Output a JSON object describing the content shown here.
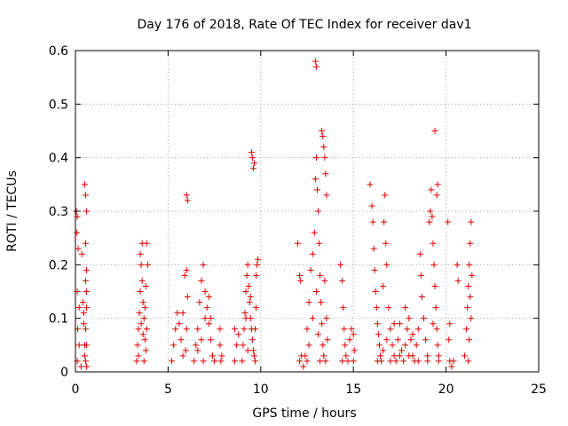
{
  "chart_data": {
    "type": "scatter",
    "title": "Day 176 of 2018, Rate Of TEC Index for receiver dav1",
    "xlabel": "GPS time / hours",
    "ylabel": "ROTI / TECUs",
    "xlim": [
      0,
      25
    ],
    "ylim": [
      0,
      0.6
    ],
    "xticks": [
      "0",
      "5",
      "10",
      "15",
      "20",
      "25"
    ],
    "yticks": [
      "0",
      "0.1",
      "0.2",
      "0.3",
      "0.4",
      "0.5",
      "0.6"
    ],
    "grid": true,
    "marker": "+",
    "color": "#e00000",
    "series": [
      {
        "name": "dav1",
        "points": [
          [
            0.05,
            0.3
          ],
          [
            0.1,
            0.29
          ],
          [
            0.08,
            0.26
          ],
          [
            0.15,
            0.23
          ],
          [
            0.1,
            0.15
          ],
          [
            0.2,
            0.12
          ],
          [
            0.12,
            0.08
          ],
          [
            0.2,
            0.05
          ],
          [
            0.1,
            0.02
          ],
          [
            0.3,
            0.01
          ],
          [
            0.35,
            0.22
          ],
          [
            0.4,
            0.13
          ],
          [
            0.45,
            0.09
          ],
          [
            0.5,
            0.05
          ],
          [
            0.5,
            0.03
          ],
          [
            0.45,
            0.11
          ],
          [
            0.5,
            0.35
          ],
          [
            0.55,
            0.33
          ],
          [
            0.6,
            0.3
          ],
          [
            0.55,
            0.24
          ],
          [
            0.6,
            0.19
          ],
          [
            0.55,
            0.17
          ],
          [
            0.6,
            0.15
          ],
          [
            0.6,
            0.12
          ],
          [
            0.55,
            0.08
          ],
          [
            0.6,
            0.05
          ],
          [
            0.55,
            0.02
          ],
          [
            0.6,
            0.01
          ],
          [
            3.3,
            0.02
          ],
          [
            3.35,
            0.05
          ],
          [
            3.4,
            0.08
          ],
          [
            3.45,
            0.11
          ],
          [
            3.5,
            0.15
          ],
          [
            3.55,
            0.2
          ],
          [
            3.6,
            0.24
          ],
          [
            3.5,
            0.22
          ],
          [
            3.6,
            0.17
          ],
          [
            3.65,
            0.13
          ],
          [
            3.7,
            0.1
          ],
          [
            3.75,
            0.06
          ],
          [
            3.8,
            0.04
          ],
          [
            3.7,
            0.02
          ],
          [
            3.9,
            0.2
          ],
          [
            3.85,
            0.24
          ],
          [
            3.8,
            0.16
          ],
          [
            3.75,
            0.12
          ],
          [
            3.4,
            0.03
          ],
          [
            3.55,
            0.09
          ],
          [
            3.65,
            0.07
          ],
          [
            3.85,
            0.08
          ],
          [
            5.2,
            0.02
          ],
          [
            5.3,
            0.05
          ],
          [
            5.4,
            0.08
          ],
          [
            5.5,
            0.11
          ],
          [
            5.6,
            0.09
          ],
          [
            5.7,
            0.06
          ],
          [
            5.8,
            0.03
          ],
          [
            5.9,
            0.18
          ],
          [
            6.0,
            0.19
          ],
          [
            6.05,
            0.14
          ],
          [
            6.0,
            0.08
          ],
          [
            5.95,
            0.04
          ],
          [
            5.8,
            0.11
          ],
          [
            6.0,
            0.33
          ],
          [
            6.05,
            0.32
          ],
          [
            6.4,
            0.02
          ],
          [
            6.5,
            0.05
          ],
          [
            6.6,
            0.08
          ],
          [
            6.7,
            0.13
          ],
          [
            6.8,
            0.17
          ],
          [
            6.9,
            0.2
          ],
          [
            7.0,
            0.15
          ],
          [
            7.1,
            0.12
          ],
          [
            7.2,
            0.09
          ],
          [
            7.3,
            0.06
          ],
          [
            7.4,
            0.03
          ],
          [
            7.5,
            0.02
          ],
          [
            7.0,
            0.1
          ],
          [
            6.8,
            0.06
          ],
          [
            7.2,
            0.14
          ],
          [
            7.3,
            0.1
          ],
          [
            6.6,
            0.04
          ],
          [
            6.9,
            0.02
          ],
          [
            7.8,
            0.08
          ],
          [
            7.9,
            0.03
          ],
          [
            7.85,
            0.02
          ],
          [
            7.8,
            0.05
          ],
          [
            8.6,
            0.02
          ],
          [
            8.7,
            0.05
          ],
          [
            8.8,
            0.07
          ],
          [
            8.6,
            0.08
          ],
          [
            9.0,
            0.02
          ],
          [
            9.05,
            0.05
          ],
          [
            9.1,
            0.08
          ],
          [
            9.15,
            0.11
          ],
          [
            9.2,
            0.15
          ],
          [
            9.25,
            0.18
          ],
          [
            9.3,
            0.2
          ],
          [
            9.35,
            0.16
          ],
          [
            9.4,
            0.13
          ],
          [
            9.45,
            0.1
          ],
          [
            9.5,
            0.08
          ],
          [
            9.55,
            0.06
          ],
          [
            9.6,
            0.04
          ],
          [
            9.65,
            0.03
          ],
          [
            9.7,
            0.02
          ],
          [
            9.75,
            0.18
          ],
          [
            9.8,
            0.2
          ],
          [
            9.85,
            0.21
          ],
          [
            9.75,
            0.12
          ],
          [
            9.7,
            0.08
          ],
          [
            9.2,
            0.1
          ],
          [
            9.3,
            0.04
          ],
          [
            9.45,
            0.14
          ],
          [
            9.5,
            0.41
          ],
          [
            9.55,
            0.4
          ],
          [
            9.6,
            0.38
          ],
          [
            9.65,
            0.39
          ],
          [
            12.0,
            0.24
          ],
          [
            12.1,
            0.18
          ],
          [
            12.15,
            0.17
          ],
          [
            12.2,
            0.03
          ],
          [
            12.3,
            0.01
          ],
          [
            12.1,
            0.02
          ],
          [
            12.4,
            0.03
          ],
          [
            12.5,
            0.08
          ],
          [
            12.6,
            0.13
          ],
          [
            12.7,
            0.19
          ],
          [
            12.8,
            0.22
          ],
          [
            12.9,
            0.26
          ],
          [
            12.95,
            0.36
          ],
          [
            13.0,
            0.4
          ],
          [
            13.05,
            0.34
          ],
          [
            13.1,
            0.3
          ],
          [
            13.15,
            0.24
          ],
          [
            13.2,
            0.18
          ],
          [
            13.25,
            0.13
          ],
          [
            13.3,
            0.09
          ],
          [
            13.35,
            0.05
          ],
          [
            13.4,
            0.03
          ],
          [
            13.5,
            0.02
          ],
          [
            13.6,
            0.06
          ],
          [
            13.55,
            0.1
          ],
          [
            13.45,
            0.17
          ],
          [
            12.6,
            0.05
          ],
          [
            12.8,
            0.1
          ],
          [
            13.0,
            0.15
          ],
          [
            13.1,
            0.07
          ],
          [
            13.2,
            0.02
          ],
          [
            12.5,
            0.02
          ],
          [
            12.95,
            0.58
          ],
          [
            13.0,
            0.57
          ],
          [
            13.3,
            0.45
          ],
          [
            13.35,
            0.44
          ],
          [
            13.4,
            0.42
          ],
          [
            13.45,
            0.4
          ],
          [
            13.5,
            0.37
          ],
          [
            13.55,
            0.33
          ],
          [
            14.3,
            0.2
          ],
          [
            14.4,
            0.17
          ],
          [
            14.45,
            0.12
          ],
          [
            14.5,
            0.08
          ],
          [
            14.55,
            0.05
          ],
          [
            14.6,
            0.03
          ],
          [
            14.7,
            0.02
          ],
          [
            14.8,
            0.06
          ],
          [
            14.9,
            0.08
          ],
          [
            15.0,
            0.07
          ],
          [
            15.05,
            0.04
          ],
          [
            15.0,
            0.02
          ],
          [
            14.4,
            0.02
          ],
          [
            15.9,
            0.35
          ],
          [
            16.0,
            0.31
          ],
          [
            16.05,
            0.28
          ],
          [
            16.1,
            0.23
          ],
          [
            16.15,
            0.19
          ],
          [
            16.2,
            0.15
          ],
          [
            16.25,
            0.12
          ],
          [
            16.3,
            0.09
          ],
          [
            16.35,
            0.07
          ],
          [
            16.4,
            0.05
          ],
          [
            16.45,
            0.03
          ],
          [
            16.5,
            0.02
          ],
          [
            16.6,
            0.16
          ],
          [
            16.65,
            0.28
          ],
          [
            16.7,
            0.33
          ],
          [
            16.75,
            0.24
          ],
          [
            16.8,
            0.2
          ],
          [
            16.9,
            0.12
          ],
          [
            17.0,
            0.08
          ],
          [
            17.1,
            0.05
          ],
          [
            17.2,
            0.03
          ],
          [
            17.3,
            0.02
          ],
          [
            17.4,
            0.06
          ],
          [
            17.5,
            0.09
          ],
          [
            17.6,
            0.04
          ],
          [
            17.7,
            0.02
          ],
          [
            17.8,
            0.05
          ],
          [
            17.9,
            0.08
          ],
          [
            18.0,
            0.1
          ],
          [
            18.1,
            0.06
          ],
          [
            18.2,
            0.03
          ],
          [
            18.3,
            0.02
          ],
          [
            18.4,
            0.05
          ],
          [
            18.5,
            0.08
          ],
          [
            18.6,
            0.22
          ],
          [
            18.65,
            0.18
          ],
          [
            18.7,
            0.14
          ],
          [
            18.8,
            0.1
          ],
          [
            18.9,
            0.06
          ],
          [
            19.0,
            0.03
          ],
          [
            19.1,
            0.28
          ],
          [
            19.15,
            0.3
          ],
          [
            19.2,
            0.34
          ],
          [
            19.25,
            0.29
          ],
          [
            19.3,
            0.24
          ],
          [
            19.35,
            0.2
          ],
          [
            19.4,
            0.16
          ],
          [
            19.45,
            0.12
          ],
          [
            19.5,
            0.08
          ],
          [
            19.55,
            0.05
          ],
          [
            19.6,
            0.03
          ],
          [
            19.6,
            0.02
          ],
          [
            16.3,
            0.02
          ],
          [
            16.6,
            0.04
          ],
          [
            17.0,
            0.02
          ],
          [
            17.5,
            0.03
          ],
          [
            18.0,
            0.03
          ],
          [
            18.5,
            0.02
          ],
          [
            19.0,
            0.02
          ],
          [
            16.8,
            0.06
          ],
          [
            17.2,
            0.09
          ],
          [
            17.8,
            0.12
          ],
          [
            18.2,
            0.07
          ],
          [
            19.3,
            0.09
          ],
          [
            19.4,
            0.45
          ],
          [
            19.55,
            0.35
          ],
          [
            19.5,
            0.33
          ],
          [
            20.1,
            0.28
          ],
          [
            20.2,
            0.09
          ],
          [
            20.15,
            0.06
          ],
          [
            20.2,
            0.02
          ],
          [
            20.3,
            0.01
          ],
          [
            20.4,
            0.02
          ],
          [
            20.6,
            0.2
          ],
          [
            20.65,
            0.17
          ],
          [
            21.0,
            0.03
          ],
          [
            21.1,
            0.08
          ],
          [
            21.15,
            0.12
          ],
          [
            21.2,
            0.16
          ],
          [
            21.25,
            0.2
          ],
          [
            21.3,
            0.24
          ],
          [
            21.35,
            0.28
          ],
          [
            21.3,
            0.14
          ],
          [
            21.25,
            0.06
          ],
          [
            21.2,
            0.02
          ],
          [
            21.4,
            0.18
          ],
          [
            21.35,
            0.1
          ]
        ]
      }
    ]
  }
}
